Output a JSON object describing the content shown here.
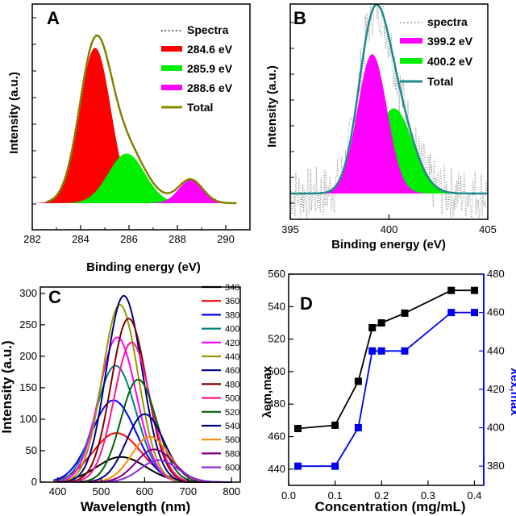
{
  "chart_data": [
    {
      "type": "area",
      "panel": "A",
      "xlabel": "Binding energy (eV)",
      "ylabel": "Intensity (a.u.)",
      "xlim": [
        282,
        291
      ],
      "xticks": [
        "282",
        "284",
        "286",
        "288",
        "290"
      ],
      "legend_position": "top-right",
      "series": [
        {
          "name": "Spectra",
          "kind": "dots",
          "color": "#000000",
          "center": 284.65,
          "height": 1.0,
          "width": 0.75
        },
        {
          "name": "284.6 eV",
          "kind": "fill",
          "color": "#ff0000",
          "center": 284.6,
          "height": 0.94,
          "width": 0.65
        },
        {
          "name": "285.9 eV",
          "kind": "fill",
          "color": "#00ee00",
          "center": 285.9,
          "height": 0.3,
          "width": 0.75
        },
        {
          "name": "288.6 eV",
          "kind": "fill",
          "color": "#ff00ff",
          "center": 288.55,
          "height": 0.14,
          "width": 0.5
        },
        {
          "name": "Total",
          "kind": "line",
          "color": "#8b8b00"
        }
      ]
    },
    {
      "type": "area",
      "panel": "B",
      "xlabel": "Binding energy (eV)",
      "ylabel": "Intensity (a.u.)",
      "xlim": [
        395,
        405
      ],
      "xticks": [
        "395",
        "400",
        "405"
      ],
      "legend_position": "top-right",
      "series": [
        {
          "name": "spectra",
          "kind": "dots",
          "color": "#666666"
        },
        {
          "name": "399.2 eV",
          "kind": "fill",
          "color": "#ff00ff",
          "center": 399.15,
          "height": 0.72,
          "width": 0.75
        },
        {
          "name": "400.2 eV",
          "kind": "fill",
          "color": "#00ee00",
          "center": 400.25,
          "height": 0.44,
          "width": 0.95
        },
        {
          "name": "Total",
          "kind": "line",
          "color": "#1f8a8a"
        }
      ]
    },
    {
      "type": "line",
      "panel": "C",
      "xlabel": "Wavelength (nm)",
      "ylabel": "Intensity (a.u.)",
      "xlim": [
        360,
        820
      ],
      "ylim": [
        0,
        310
      ],
      "xticks": [
        "400",
        "500",
        "600",
        "700",
        "800"
      ],
      "yticks": [
        "0",
        "50",
        "100",
        "150",
        "200",
        "250",
        "300"
      ],
      "legend_position": "right",
      "series": [
        {
          "name": "340",
          "color": "#000000",
          "peak": 545,
          "height": 40,
          "sigma": 55
        },
        {
          "name": "360",
          "color": "#ff0000",
          "peak": 535,
          "height": 78,
          "sigma": 55
        },
        {
          "name": "380",
          "color": "#0000ff",
          "peak": 528,
          "height": 130,
          "sigma": 50
        },
        {
          "name": "400",
          "color": "#008080",
          "peak": 533,
          "height": 185,
          "sigma": 45
        },
        {
          "name": "420",
          "color": "#ff00ff",
          "peak": 537,
          "height": 230,
          "sigma": 42
        },
        {
          "name": "440",
          "color": "#999900",
          "peak": 543,
          "height": 282,
          "sigma": 40
        },
        {
          "name": "460",
          "color": "#000080",
          "peak": 552,
          "height": 296,
          "sigma": 40
        },
        {
          "name": "480",
          "color": "#800000",
          "peak": 563,
          "height": 260,
          "sigma": 40
        },
        {
          "name": "500",
          "color": "#ff1493",
          "peak": 570,
          "height": 222,
          "sigma": 40
        },
        {
          "name": "520",
          "color": "#006400",
          "peak": 585,
          "height": 163,
          "sigma": 40
        },
        {
          "name": "540",
          "color": "#00008b",
          "peak": 600,
          "height": 108,
          "sigma": 42
        },
        {
          "name": "560",
          "color": "#ff8c00",
          "peak": 612,
          "height": 72,
          "sigma": 42
        },
        {
          "name": "580",
          "color": "#800080",
          "peak": 622,
          "height": 52,
          "sigma": 42
        },
        {
          "name": "600",
          "color": "#8a2be2",
          "peak": 632,
          "height": 35,
          "sigma": 42
        }
      ]
    },
    {
      "type": "line",
      "panel": "D",
      "xlabel": "Concentration (mg/mL)",
      "ylabel": "λem,max",
      "y2label": "λex,max",
      "xlim": [
        0.0,
        0.42
      ],
      "ylim": [
        430,
        560
      ],
      "y2lim": [
        370,
        480
      ],
      "xticks": [
        "0.0",
        "0.1",
        "0.2",
        "0.3",
        "0.4"
      ],
      "yticks": [
        "440",
        "460",
        "480",
        "500",
        "520",
        "540",
        "560"
      ],
      "y2ticks": [
        "380",
        "400",
        "420",
        "440",
        "460",
        "480"
      ],
      "x": [
        0.02,
        0.1,
        0.15,
        0.18,
        0.2,
        0.25,
        0.35,
        0.4
      ],
      "series": [
        {
          "name": "λem,max",
          "axis": "left",
          "color": "#000000",
          "values": [
            465,
            467,
            494,
            527,
            530,
            536,
            550,
            550
          ]
        },
        {
          "name": "λex,max",
          "axis": "right",
          "color": "#0000ee",
          "values": [
            380,
            380,
            400,
            440,
            440,
            440,
            460,
            460
          ]
        }
      ]
    }
  ]
}
